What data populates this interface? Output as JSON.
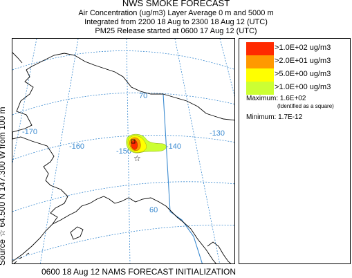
{
  "header": {
    "title": "NWS SMOKE FORECAST",
    "line1": "Air Concentration (ug/m3) Layer Average    0 m and  5000 m",
    "line2": "Integrated from 2200 18 Aug to 2300 18 Aug 12 (UTC)",
    "line3": "PM25 Release started at 0600 17 Aug 12 (UTC)"
  },
  "side_label": "Source ☆ 64.500 N 147.300  W    from   100 m",
  "footer": "0600 18 Aug 12 NAMS FORECAST INITIALIZATION",
  "map": {
    "graticule_labels": [
      {
        "text": "-170"
      },
      {
        "text": "-160"
      },
      {
        "text": "-150"
      },
      {
        "text": "-140"
      },
      {
        "text": "-130"
      },
      {
        "text": "70"
      },
      {
        "text": "60"
      }
    ],
    "colors": {
      "coast": "#000000",
      "grid": "#3a8ad0",
      "grid_label": "#3a8ad0"
    }
  },
  "legend": {
    "items": [
      {
        "label": ">1.0E+02 ug/m3",
        "color": "#ff2a00"
      },
      {
        "label": ">2.0E+01 ug/m3",
        "color": "#ff9900"
      },
      {
        "label": ">5.0E+00 ug/m3",
        "color": "#ffff00"
      },
      {
        "label": ">1.0E+00 ug/m3",
        "color": "#ccff33"
      }
    ],
    "maximum": "Maximum: 1.6E+02",
    "maximum_note": "(Identified as a square)",
    "minimum": "Minimum: 1.7E-12"
  }
}
